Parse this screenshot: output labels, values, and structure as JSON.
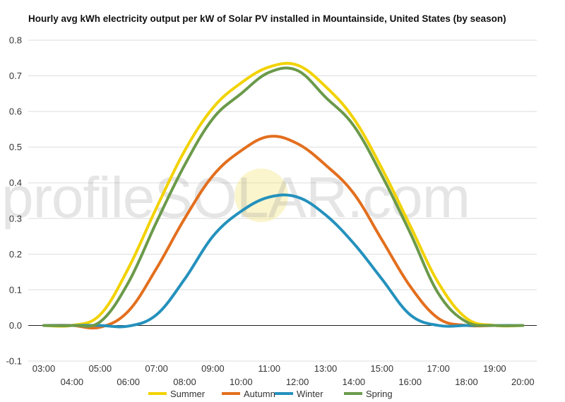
{
  "chart_data": {
    "type": "line",
    "title": "Hourly avg kWh electricity output per kW of Solar PV installed in Mountainside, United States (by season)",
    "xlabel": "",
    "ylabel": "",
    "x": [
      "03:00",
      "04:00",
      "05:00",
      "06:00",
      "07:00",
      "08:00",
      "09:00",
      "10:00",
      "11:00",
      "12:00",
      "13:00",
      "14:00",
      "15:00",
      "16:00",
      "17:00",
      "18:00",
      "19:00",
      "20:00"
    ],
    "ylim": [
      -0.1,
      0.8
    ],
    "yticks": [
      "0.8",
      "0.7",
      "0.6",
      "0.5",
      "0.4",
      "0.3",
      "0.2",
      "0.1",
      "0.0",
      "-0.1"
    ],
    "grid": true,
    "legend": "bottom",
    "watermark": "profileSOLAR.com",
    "series": [
      {
        "name": "Summer",
        "color": "#f2d200",
        "values": [
          0,
          0,
          0.03,
          0.16,
          0.33,
          0.49,
          0.61,
          0.68,
          0.725,
          0.73,
          0.67,
          0.58,
          0.44,
          0.28,
          0.12,
          0.02,
          0,
          0
        ]
      },
      {
        "name": "Autumn",
        "color": "#e36f1e",
        "values": [
          0,
          0,
          -0.005,
          0.04,
          0.16,
          0.3,
          0.42,
          0.49,
          0.53,
          0.51,
          0.45,
          0.37,
          0.24,
          0.11,
          0.02,
          0,
          0,
          0
        ]
      },
      {
        "name": "Winter",
        "color": "#2491bd",
        "values": [
          0,
          0,
          0,
          -0.002,
          0.03,
          0.13,
          0.25,
          0.32,
          0.36,
          0.36,
          0.31,
          0.23,
          0.13,
          0.03,
          0,
          0,
          0,
          0
        ]
      },
      {
        "name": "Spring",
        "color": "#6b9a4a",
        "values": [
          0,
          0,
          0.01,
          0.12,
          0.29,
          0.45,
          0.58,
          0.65,
          0.71,
          0.715,
          0.64,
          0.56,
          0.42,
          0.26,
          0.09,
          0.01,
          0,
          0
        ]
      }
    ]
  }
}
